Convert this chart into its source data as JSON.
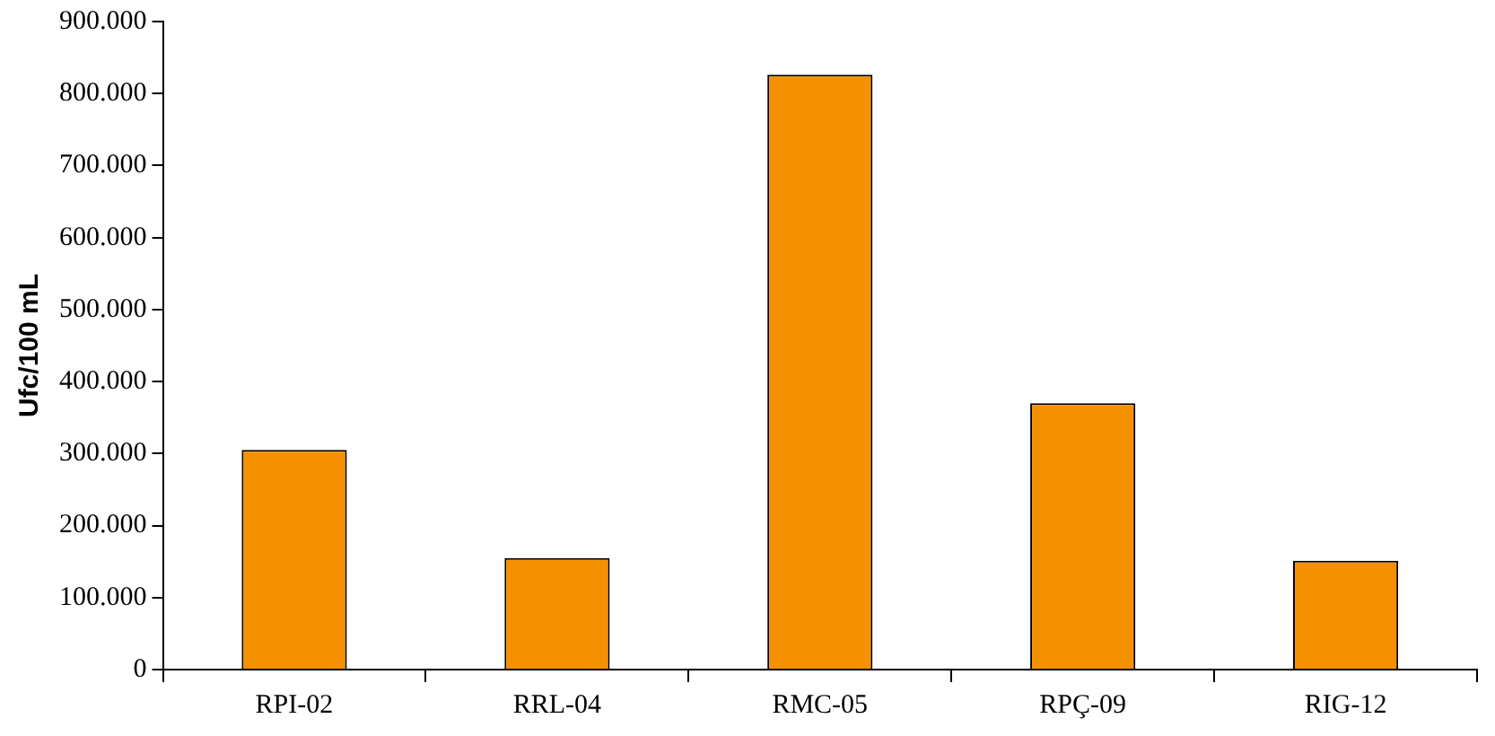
{
  "chart_data": {
    "type": "bar",
    "ylabel": "Ufc/100 mL",
    "categories": [
      "RPI-02",
      "RRL-04",
      "RMC-05",
      "RPÇ-09",
      "RIG-12"
    ],
    "values": [
      305000,
      155000,
      826000,
      370000,
      151000
    ],
    "color": "#f59100",
    "ylim": [
      0,
      900000
    ],
    "yticks": [
      {
        "value": 0,
        "label": "0"
      },
      {
        "value": 100000,
        "label": "100.000"
      },
      {
        "value": 200000,
        "label": "200.000"
      },
      {
        "value": 300000,
        "label": "300.000"
      },
      {
        "value": 400000,
        "label": "400.000"
      },
      {
        "value": 500000,
        "label": "500.000"
      },
      {
        "value": 600000,
        "label": "600.000"
      },
      {
        "value": 700000,
        "label": "700.000"
      },
      {
        "value": 800000,
        "label": "800.000"
      },
      {
        "value": 900000,
        "label": "900.000"
      }
    ],
    "grid": false
  }
}
